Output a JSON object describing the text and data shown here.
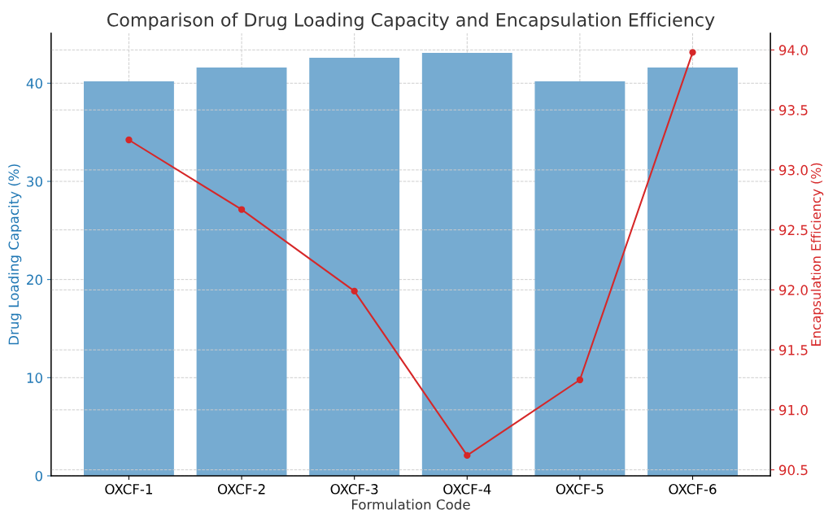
{
  "chart_data": {
    "type": "bar",
    "title": "Comparison of Drug Loading Capacity and Encapsulation Efficiency",
    "xlabel": "Formulation Code",
    "ylabel": "Drug Loading Capacity (%)",
    "y2label": "Encapsulation Efficiency (%)",
    "categories": [
      "OXCF-1",
      "OXCF-2",
      "OXCF-3",
      "OXCF-4",
      "OXCF-5",
      "OXCF-6"
    ],
    "series": [
      {
        "color": "#76abd1",
        "values": [
          40.2,
          41.6,
          42.6,
          43.1,
          40.2,
          41.6
        ]
      },
      {
        "type": "line",
        "axis": "y2",
        "color": "#d62728",
        "values": [
          93.25,
          92.67,
          91.99,
          90.62,
          91.25,
          93.98
        ]
      }
    ],
    "ylim": [
      0,
      45.1
    ],
    "yticks": [
      0,
      10,
      20,
      30,
      40
    ],
    "y2lim": [
      90.45,
      94.14
    ],
    "y2ticks": [
      {
        "value": 90.5,
        "label": "90.5"
      },
      {
        "value": 91.0,
        "label": "91.0"
      },
      {
        "value": 91.5,
        "label": "91.5"
      },
      {
        "value": 92.0,
        "label": "92.0"
      },
      {
        "value": 92.5,
        "label": "92.5"
      },
      {
        "value": 93.0,
        "label": "93.0"
      },
      {
        "value": 93.5,
        "label": "93.5"
      },
      {
        "value": 94.0,
        "label": "94.0"
      }
    ],
    "grid": true,
    "marker": "circle",
    "line_style": "solid"
  }
}
